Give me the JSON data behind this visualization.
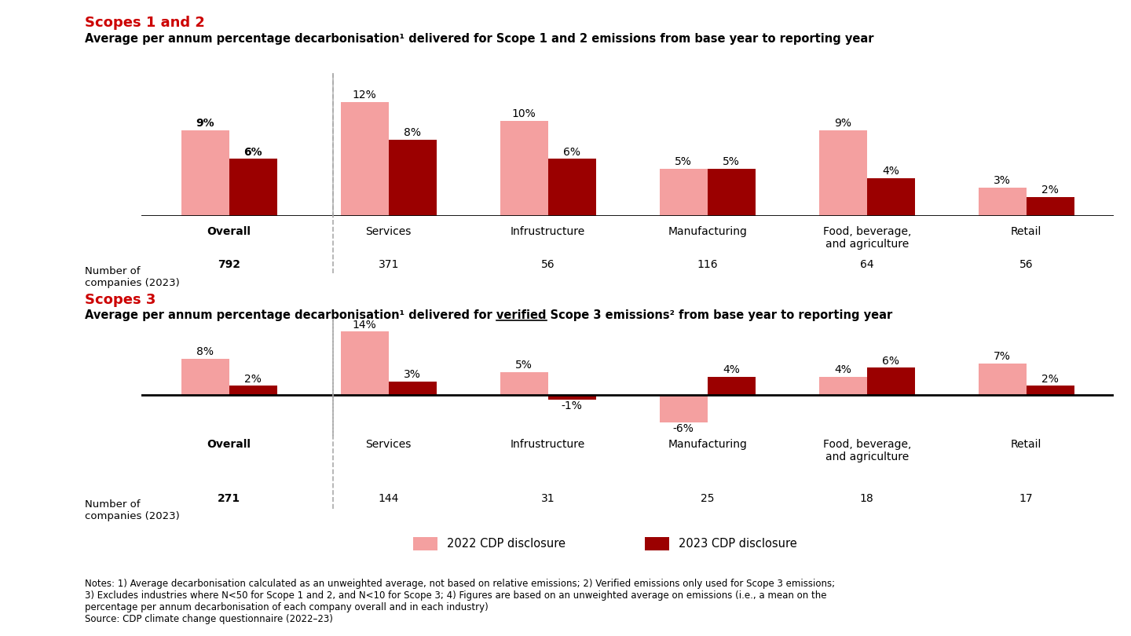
{
  "scope12_title_red": "Scopes 1 and 2",
  "scope12_subtitle": "Average per annum percentage decarbonisation¹ delivered for Scope 1 and 2 emissions from base year to reporting year",
  "scope3_title_red": "Scopes 3",
  "scope3_subtitle_pre": "Average per annum percentage decarbonisation¹ delivered for ",
  "scope3_subtitle_underlined": "verified",
  "scope3_subtitle_post": " Scope 3 emissions² from base year to reporting year",
  "categories": [
    "Overall",
    "Services",
    "Infrustructure",
    "Manufacturing",
    "Food, beverage,\nand agriculture",
    "Retail"
  ],
  "scope12_2022": [
    9,
    12,
    10,
    5,
    9,
    3
  ],
  "scope12_2023": [
    6,
    8,
    6,
    5,
    4,
    2
  ],
  "scope3_2022": [
    8,
    14,
    5,
    -6,
    4,
    7
  ],
  "scope3_2023": [
    2,
    3,
    -1,
    4,
    6,
    2
  ],
  "scope12_companies": [
    "792",
    "371",
    "56",
    "116",
    "64",
    "56"
  ],
  "scope3_companies": [
    "271",
    "144",
    "31",
    "25",
    "18",
    "17"
  ],
  "color_2022": "#F4A0A0",
  "color_2023": "#9B0000",
  "color_red_title": "#CC0000",
  "color_black": "#000000",
  "color_gray_dashed": "#AAAAAA",
  "background_color": "#FFFFFF",
  "legend_label_2022": "2022 CDP disclosure",
  "legend_label_2023": "2023 CDP disclosure",
  "notes_text": "Notes: 1) Average decarbonisation calculated as an unweighted average, not based on relative emissions; 2) Verified emissions only used for Scope 3 emissions;\n3) Excludes industries where N<50 for Scope 1 and 2, and N<10 for Scope 3; 4) Figures are based on an unweighted average on emissions (i.e., a mean on the\npercentage per annum decarbonisation of each company overall and in each industry)\nSource: CDP climate change questionnaire (2022–23)"
}
